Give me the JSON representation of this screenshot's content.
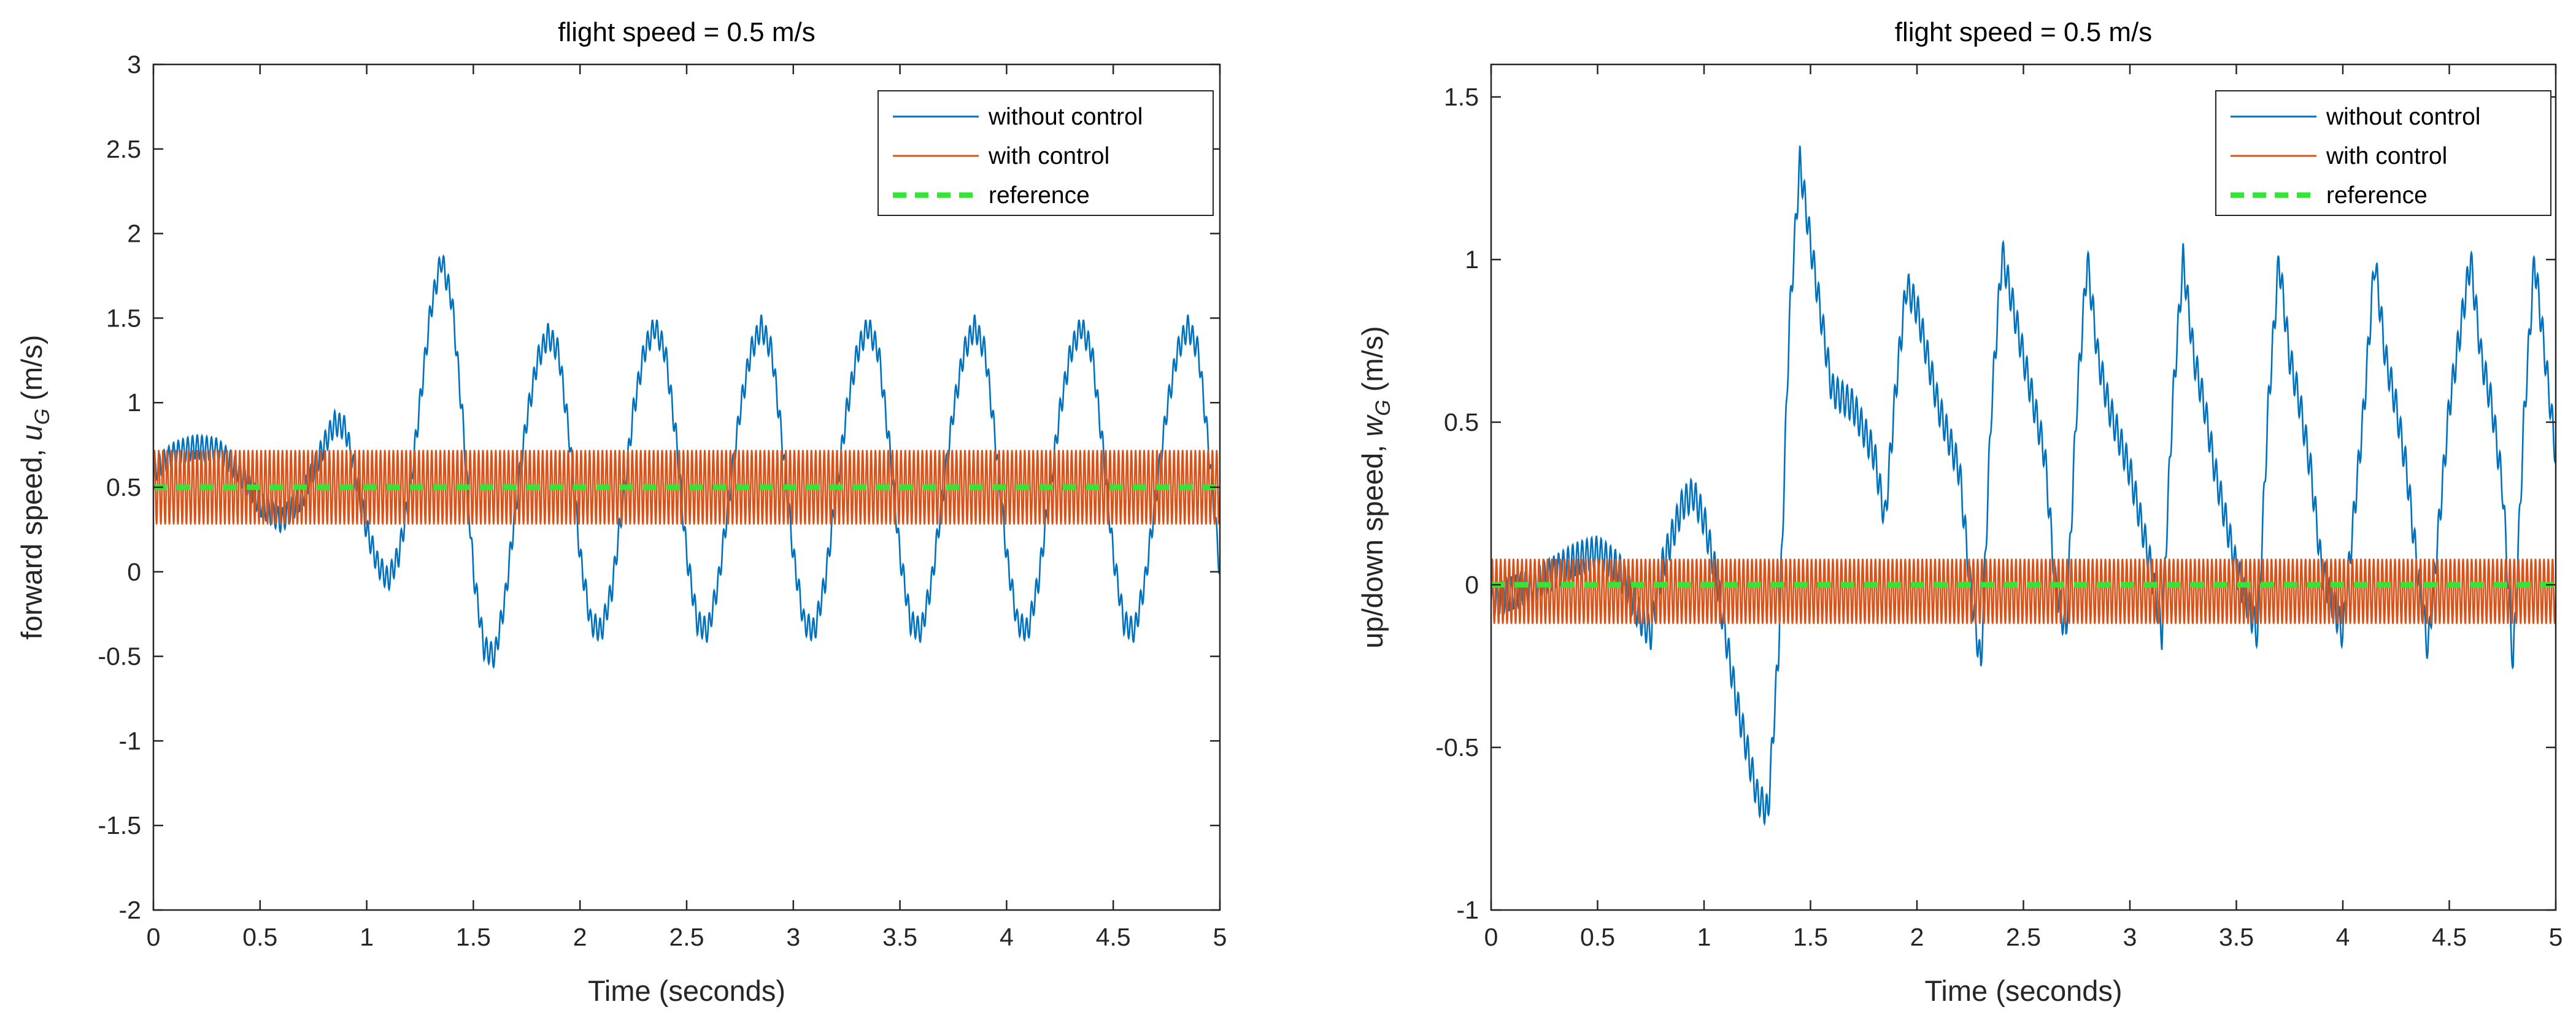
{
  "chart_data": [
    {
      "type": "line",
      "title": "flight speed = 0.5 m/s",
      "xlabel": "Time (seconds)",
      "ylabel_prefix": "forward speed, ",
      "ylabel_var": "u",
      "ylabel_sub": "G",
      "ylabel_unit": " (m/s)",
      "xlim": [
        0,
        5
      ],
      "ylim": [
        -2,
        3
      ],
      "xticks": [
        0,
        0.5,
        1,
        1.5,
        2,
        2.5,
        3,
        3.5,
        4,
        4.5,
        5
      ],
      "xtick_labels": [
        "0",
        "0.5",
        "1",
        "1.5",
        "2",
        "2.5",
        "3",
        "3.5",
        "4",
        "4.5",
        "5"
      ],
      "yticks": [
        -2,
        -1.5,
        -1,
        -0.5,
        0,
        0.5,
        1,
        1.5,
        2,
        2.5,
        3
      ],
      "ytick_labels": [
        "-2",
        "-1.5",
        "-1",
        "-0.5",
        "0",
        "0.5",
        "1",
        "1.5",
        "2",
        "2.5",
        "3"
      ],
      "grid": false,
      "legend_position": "top-right",
      "series": [
        {
          "name": "without control",
          "color": "#0072BD",
          "style": "solid",
          "ripple_amplitude": 0.07,
          "ripple_frequency_hz": 45,
          "x": [
            0,
            0.1,
            0.2,
            0.3,
            0.4,
            0.5,
            0.6,
            0.7,
            0.8,
            0.85,
            0.9,
            0.95,
            1.0,
            1.05,
            1.1,
            1.15,
            1.2,
            1.25,
            1.3,
            1.35,
            1.4,
            1.45,
            1.5,
            1.55,
            1.6,
            1.65,
            1.7,
            1.75,
            1.8,
            1.85,
            1.9,
            1.95,
            2.0,
            2.05,
            2.1,
            2.15,
            2.2,
            2.25,
            2.3,
            2.35,
            2.4,
            2.45,
            2.5,
            2.55,
            2.6,
            2.65,
            2.7,
            2.75,
            2.8,
            2.85,
            2.9,
            2.95,
            3.0,
            3.05,
            3.1,
            3.15,
            3.2,
            3.25,
            3.3,
            3.35,
            3.4,
            3.45,
            3.5,
            3.55,
            3.6,
            3.65,
            3.7,
            3.75,
            3.8,
            3.85,
            3.9,
            3.95,
            4.0,
            4.05,
            4.1,
            4.15,
            4.2,
            4.25,
            4.3,
            4.35,
            4.4,
            4.45,
            4.5,
            4.55,
            4.6,
            4.65,
            4.7,
            4.75,
            4.8,
            4.85,
            4.9,
            4.95,
            5.0
          ],
          "y": [
            0.6,
            0.7,
            0.74,
            0.72,
            0.6,
            0.4,
            0.3,
            0.45,
            0.75,
            0.88,
            0.85,
            0.55,
            0.25,
            0.05,
            -0.05,
            0.1,
            0.45,
            1.0,
            1.55,
            1.85,
            1.6,
            0.9,
            0.0,
            -0.45,
            -0.5,
            -0.15,
            0.4,
            0.9,
            1.25,
            1.4,
            1.3,
            0.8,
            0.1,
            -0.3,
            -0.35,
            -0.1,
            0.4,
            0.95,
            1.3,
            1.45,
            1.3,
            0.8,
            0.1,
            -0.3,
            -0.35,
            -0.05,
            0.45,
            0.95,
            1.3,
            1.45,
            1.3,
            0.75,
            0.1,
            -0.3,
            -0.35,
            -0.05,
            0.45,
            0.95,
            1.3,
            1.45,
            1.3,
            0.75,
            0.1,
            -0.3,
            -0.35,
            -0.05,
            0.45,
            0.95,
            1.3,
            1.45,
            1.3,
            0.75,
            0.1,
            -0.3,
            -0.35,
            -0.05,
            0.45,
            0.95,
            1.3,
            1.45,
            1.3,
            0.75,
            0.1,
            -0.3,
            -0.35,
            -0.05,
            0.45,
            0.95,
            1.3,
            1.45,
            1.3,
            0.7,
            0.0
          ]
        },
        {
          "name": "with control",
          "color": "#D95319",
          "style": "solid",
          "center": 0.5,
          "amplitude": 0.22,
          "frequency_hz": 50,
          "x_range": [
            0,
            5
          ]
        },
        {
          "name": "reference",
          "color": "#33E633",
          "style": "dashed",
          "x": [
            0,
            5
          ],
          "y": [
            0.5,
            0.5
          ]
        }
      ]
    },
    {
      "type": "line",
      "title": "flight speed = 0.5 m/s",
      "xlabel": "Time (seconds)",
      "ylabel_prefix": "up/down speed, ",
      "ylabel_var": "w",
      "ylabel_sub": "G",
      "ylabel_unit": " (m/s)",
      "xlim": [
        0,
        5
      ],
      "ylim": [
        -1,
        1.6
      ],
      "xticks": [
        0,
        0.5,
        1,
        1.5,
        2,
        2.5,
        3,
        3.5,
        4,
        4.5,
        5
      ],
      "xtick_labels": [
        "0",
        "0.5",
        "1",
        "1.5",
        "2",
        "2.5",
        "3",
        "3.5",
        "4",
        "4.5",
        "5"
      ],
      "yticks": [
        -1,
        -0.5,
        0,
        0.5,
        1,
        1.5
      ],
      "ytick_labels": [
        "-1",
        "-0.5",
        "0",
        "0.5",
        "1",
        "1.5"
      ],
      "grid": false,
      "legend_position": "top-right",
      "series": [
        {
          "name": "without control",
          "color": "#0072BD",
          "style": "solid",
          "ripple_amplitude": 0.05,
          "ripple_frequency_hz": 45,
          "x": [
            0,
            0.2,
            0.4,
            0.5,
            0.6,
            0.7,
            0.75,
            0.8,
            0.9,
            0.95,
            1.0,
            1.05,
            1.1,
            1.15,
            1.2,
            1.25,
            1.3,
            1.35,
            1.4,
            1.45,
            1.5,
            1.6,
            1.7,
            1.8,
            1.85,
            1.9,
            1.95,
            2.0,
            2.1,
            2.2,
            2.25,
            2.3,
            2.35,
            2.4,
            2.5,
            2.6,
            2.65,
            2.7,
            2.75,
            2.8,
            2.85,
            2.9,
            3.0,
            3.1,
            3.15,
            3.2,
            3.25,
            3.3,
            3.35,
            3.4,
            3.5,
            3.6,
            3.65,
            3.7,
            3.75,
            3.8,
            3.85,
            3.9,
            4.0,
            4.1,
            4.15,
            4.2,
            4.25,
            4.3,
            4.35,
            4.4,
            4.5,
            4.6,
            4.65,
            4.7,
            4.75,
            4.8,
            4.85,
            4.9,
            5.0
          ],
          "y": [
            -0.05,
            0.0,
            0.08,
            0.1,
            0.05,
            -0.1,
            -0.15,
            0.05,
            0.25,
            0.28,
            0.2,
            0.05,
            -0.15,
            -0.35,
            -0.5,
            -0.65,
            -0.7,
            -0.2,
            0.8,
            1.3,
            1.05,
            0.6,
            0.55,
            0.4,
            0.2,
            0.6,
            0.92,
            0.85,
            0.55,
            0.35,
            0.0,
            -0.25,
            0.55,
            1.02,
            0.7,
            0.4,
            0.0,
            -0.15,
            0.55,
            1.0,
            0.7,
            0.55,
            0.35,
            0.05,
            -0.15,
            0.55,
            1.0,
            0.7,
            0.55,
            0.35,
            0.05,
            -0.15,
            0.55,
            1.0,
            0.7,
            0.55,
            0.35,
            0.05,
            -0.15,
            0.55,
            1.0,
            0.7,
            0.55,
            0.35,
            0.05,
            -0.2,
            0.55,
            1.0,
            0.7,
            0.55,
            0.3,
            -0.25,
            0.5,
            1.0,
            0.4
          ]
        },
        {
          "name": "with control",
          "color": "#D95319",
          "style": "solid",
          "center": -0.02,
          "amplitude": 0.1,
          "frequency_hz": 50,
          "x_range": [
            0,
            5
          ]
        },
        {
          "name": "reference",
          "color": "#33E633",
          "style": "dashed",
          "x": [
            0,
            5
          ],
          "y": [
            0,
            0
          ]
        }
      ]
    }
  ]
}
